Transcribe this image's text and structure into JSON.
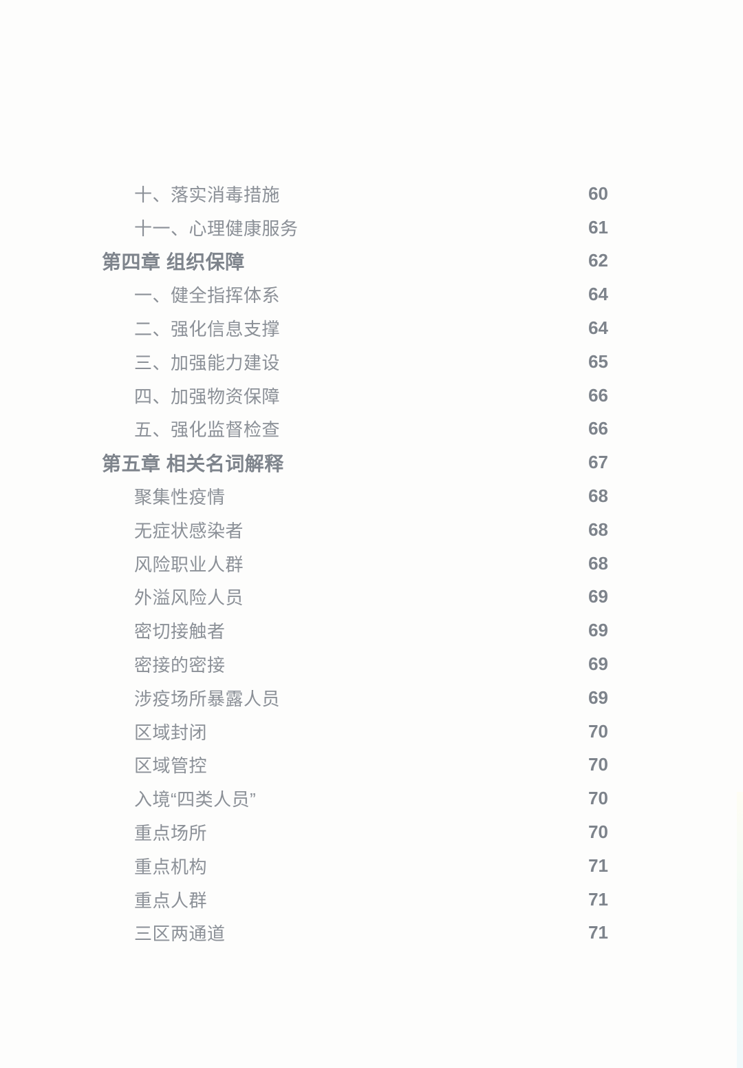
{
  "colors": {
    "background": "#fdfdfc",
    "item_text": "#8b9097",
    "chapter_text": "#7e848c",
    "page_number": "#7d838b"
  },
  "toc": {
    "entries": [
      {
        "label": "十、落实消毒措施",
        "page": "60",
        "level": "sub"
      },
      {
        "label": "十一、心理健康服务",
        "page": "61",
        "level": "sub"
      },
      {
        "label": "第四章 组织保障",
        "page": "62",
        "level": "chapter"
      },
      {
        "label": "一、健全指挥体系",
        "page": "64",
        "level": "sub"
      },
      {
        "label": "二、强化信息支撑",
        "page": "64",
        "level": "sub"
      },
      {
        "label": "三、加强能力建设",
        "page": "65",
        "level": "sub"
      },
      {
        "label": "四、加强物资保障",
        "page": "66",
        "level": "sub"
      },
      {
        "label": "五、强化监督检查",
        "page": "66",
        "level": "sub"
      },
      {
        "label": "第五章 相关名词解释",
        "page": "67",
        "level": "chapter"
      },
      {
        "label": "聚集性疫情",
        "page": "68",
        "level": "term"
      },
      {
        "label": "无症状感染者",
        "page": "68",
        "level": "term"
      },
      {
        "label": "风险职业人群",
        "page": "68",
        "level": "term"
      },
      {
        "label": "外溢风险人员",
        "page": "69",
        "level": "term"
      },
      {
        "label": "密切接触者",
        "page": "69",
        "level": "term"
      },
      {
        "label": "密接的密接",
        "page": "69",
        "level": "term"
      },
      {
        "label": "涉疫场所暴露人员",
        "page": "69",
        "level": "term"
      },
      {
        "label": "区域封闭",
        "page": "70",
        "level": "term"
      },
      {
        "label": "区域管控",
        "page": "70",
        "level": "term"
      },
      {
        "label": "入境“四类人员”",
        "page": "70",
        "level": "term"
      },
      {
        "label": "重点场所",
        "page": "70",
        "level": "term"
      },
      {
        "label": "重点机构",
        "page": "71",
        "level": "term"
      },
      {
        "label": "重点人群",
        "page": "71",
        "level": "term"
      },
      {
        "label": "三区两通道",
        "page": "71",
        "level": "term"
      }
    ]
  }
}
